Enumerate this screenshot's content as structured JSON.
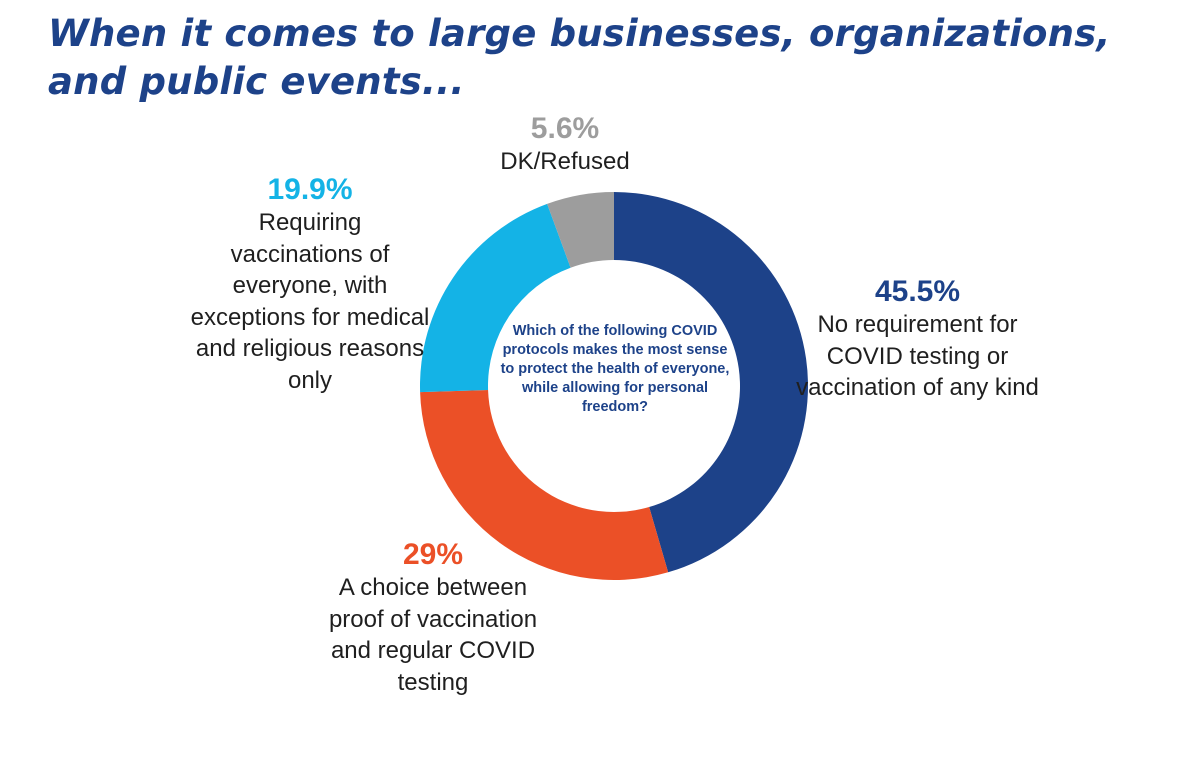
{
  "header": {
    "title": "When it comes to large businesses, organizations, and public events..."
  },
  "chart_data": {
    "type": "pie",
    "donut": true,
    "center_text": "Which of the following COVID protocols makes the most sense to protect the health of everyone, while allowing for personal freedom?",
    "start_angle_deg": 0,
    "direction": "clockwise",
    "slices": [
      {
        "key": "no",
        "value": 45.5,
        "value_label": "45.5%",
        "label": "No requirement for COVID testing or vaccination of any kind",
        "color": "#1d4289"
      },
      {
        "key": "choice",
        "value": 29,
        "value_label": "29%",
        "label": "A choice between proof of vaccination and regular COVID testing",
        "color": "#eb5027"
      },
      {
        "key": "req",
        "value": 19.9,
        "value_label": "19.9%",
        "label": "Requiring vaccinations of everyone, with exceptions for medical and religious reasons only",
        "color": "#14b3e6"
      },
      {
        "key": "dk",
        "value": 5.6,
        "value_label": "5.6%",
        "label": "DK/Refused",
        "color": "#9d9d9d"
      }
    ]
  }
}
